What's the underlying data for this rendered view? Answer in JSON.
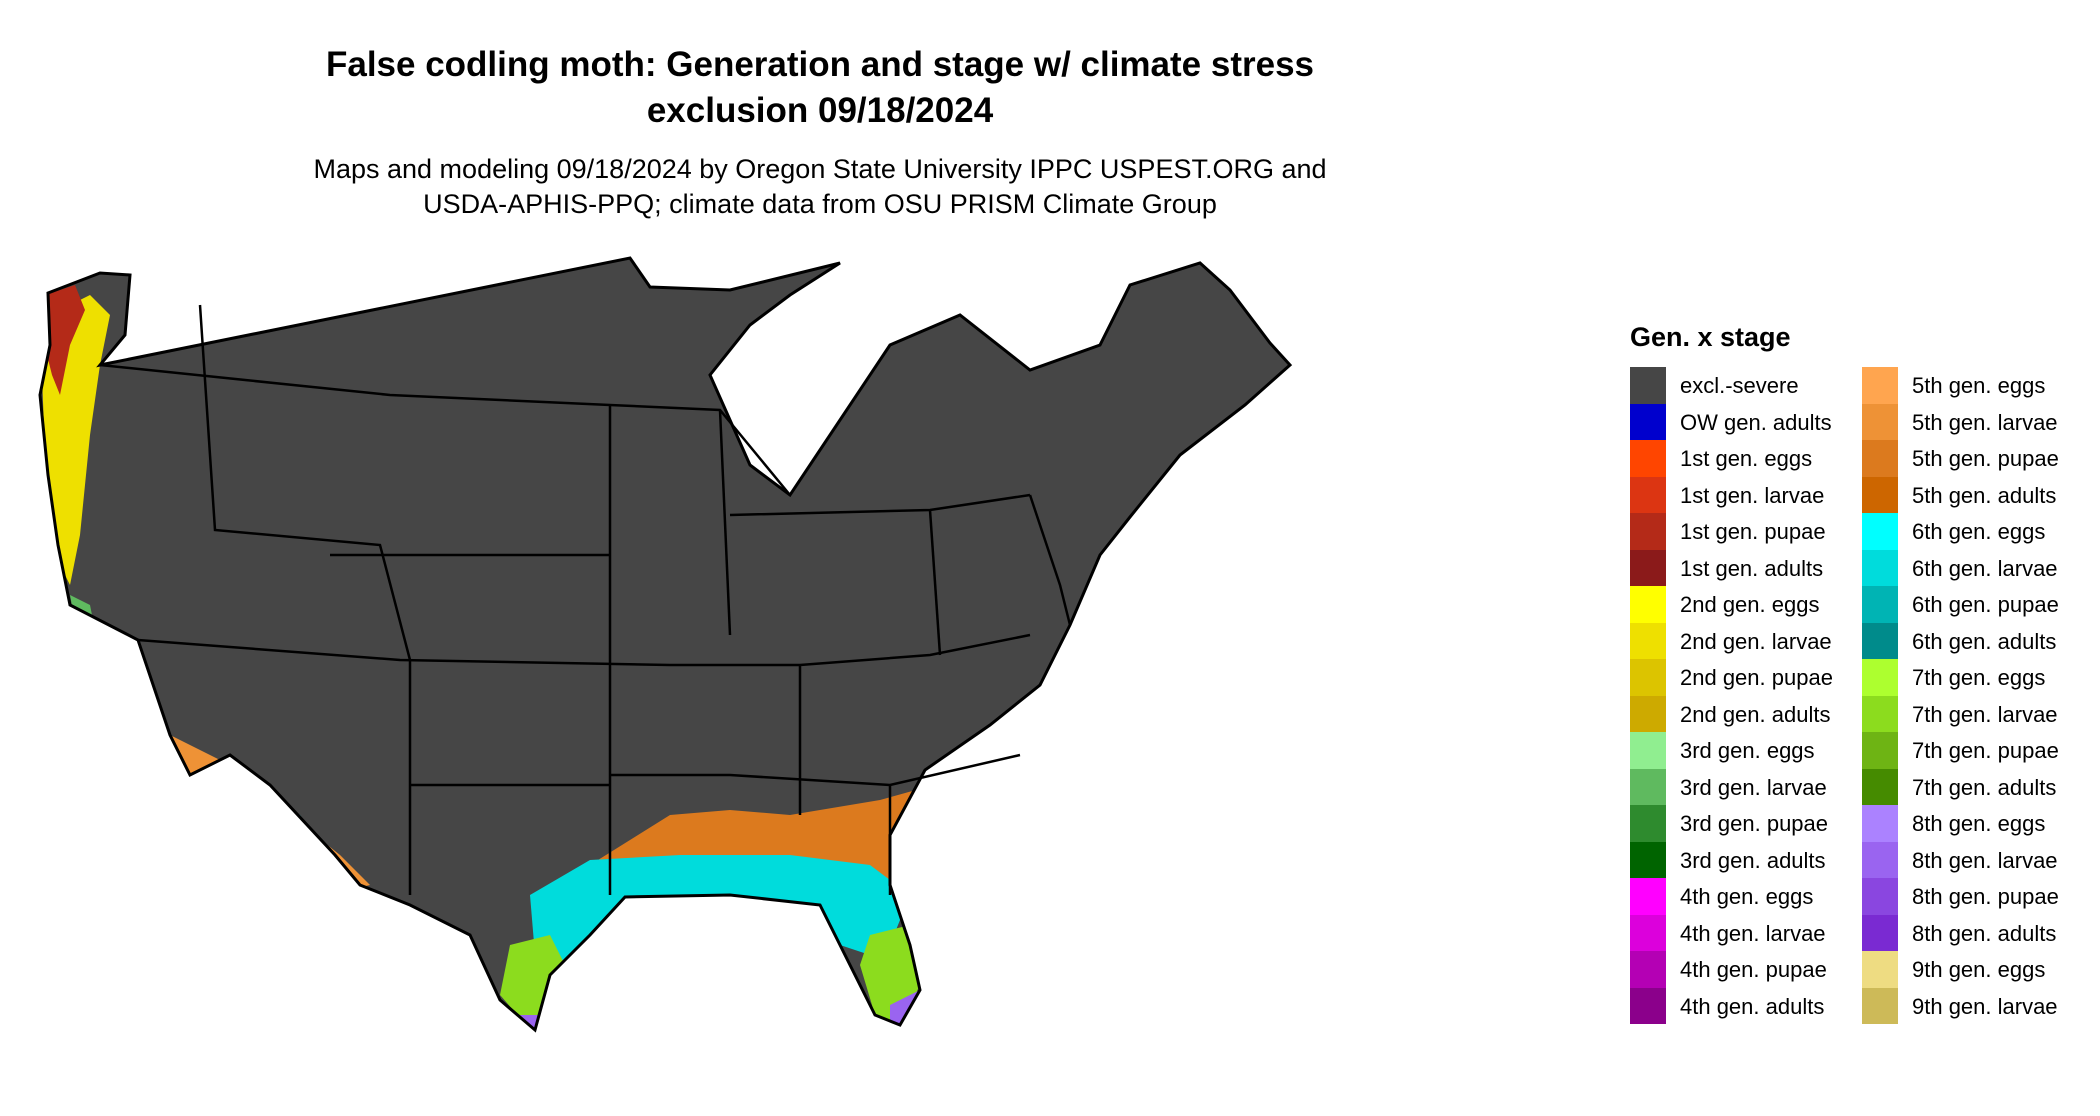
{
  "title": {
    "line1": "False codling moth: Generation and stage w/ climate stress",
    "line2": "exclusion 09/18/2024"
  },
  "subtitle": {
    "line1": "Maps and modeling 09/18/2024 by Oregon State University IPPC USPEST.ORG and",
    "line2": "USDA-APHIS-PPQ; climate data from OSU PRISM Climate Group"
  },
  "legend": {
    "title": "Gen. x stage",
    "column1": [
      {
        "label": "excl.-severe",
        "color": "#464646"
      },
      {
        "label": "OW gen. adults",
        "color": "#0000cd"
      },
      {
        "label": "1st gen. eggs",
        "color": "#ff4500"
      },
      {
        "label": "1st gen. larvae",
        "color": "#dc3512"
      },
      {
        "label": "1st gen. pupae",
        "color": "#b42a18"
      },
      {
        "label": "1st gen. adults",
        "color": "#8b1a1a"
      },
      {
        "label": "2nd gen. eggs",
        "color": "#ffff00"
      },
      {
        "label": "2nd gen. larvae",
        "color": "#eee000"
      },
      {
        "label": "2nd gen. pupae",
        "color": "#dcc400"
      },
      {
        "label": "2nd gen. adults",
        "color": "#cdaa00"
      },
      {
        "label": "3rd gen. eggs",
        "color": "#90ee90"
      },
      {
        "label": "3rd gen. larvae",
        "color": "#5fba5f"
      },
      {
        "label": "3rd gen. pupae",
        "color": "#2e8b2e"
      },
      {
        "label": "3rd gen. adults",
        "color": "#006400"
      },
      {
        "label": "4th gen. eggs",
        "color": "#ff00ff"
      },
      {
        "label": "4th gen. larvae",
        "color": "#dc00dc"
      },
      {
        "label": "4th gen. pupae",
        "color": "#b400b4"
      },
      {
        "label": "4th gen. adults",
        "color": "#8b008b"
      }
    ],
    "column2": [
      {
        "label": "5th gen. eggs",
        "color": "#ffa54f"
      },
      {
        "label": "5th gen. larvae",
        "color": "#ee9236"
      },
      {
        "label": "5th gen. pupae",
        "color": "#dc7a1e"
      },
      {
        "label": "5th gen. adults",
        "color": "#cd6600"
      },
      {
        "label": "6th gen. eggs",
        "color": "#00ffff"
      },
      {
        "label": "6th gen. larvae",
        "color": "#00dcdc"
      },
      {
        "label": "6th gen. pupae",
        "color": "#00b4b4"
      },
      {
        "label": "6th gen. adults",
        "color": "#008b8b"
      },
      {
        "label": "7th gen. eggs",
        "color": "#adff2f"
      },
      {
        "label": "7th gen. larvae",
        "color": "#8cdc1e"
      },
      {
        "label": "7th gen. pupae",
        "color": "#6eb414"
      },
      {
        "label": "7th gen. adults",
        "color": "#458b00"
      },
      {
        "label": "8th gen. eggs",
        "color": "#ab82ff"
      },
      {
        "label": "8th gen. larvae",
        "color": "#9a64f0"
      },
      {
        "label": "8th gen. pupae",
        "color": "#8a46e0"
      },
      {
        "label": "8th gen. adults",
        "color": "#7a2ad2"
      },
      {
        "label": "9th gen. eggs",
        "color": "#eedc82"
      },
      {
        "label": "9th gen. larvae",
        "color": "#cdba58"
      }
    ]
  }
}
